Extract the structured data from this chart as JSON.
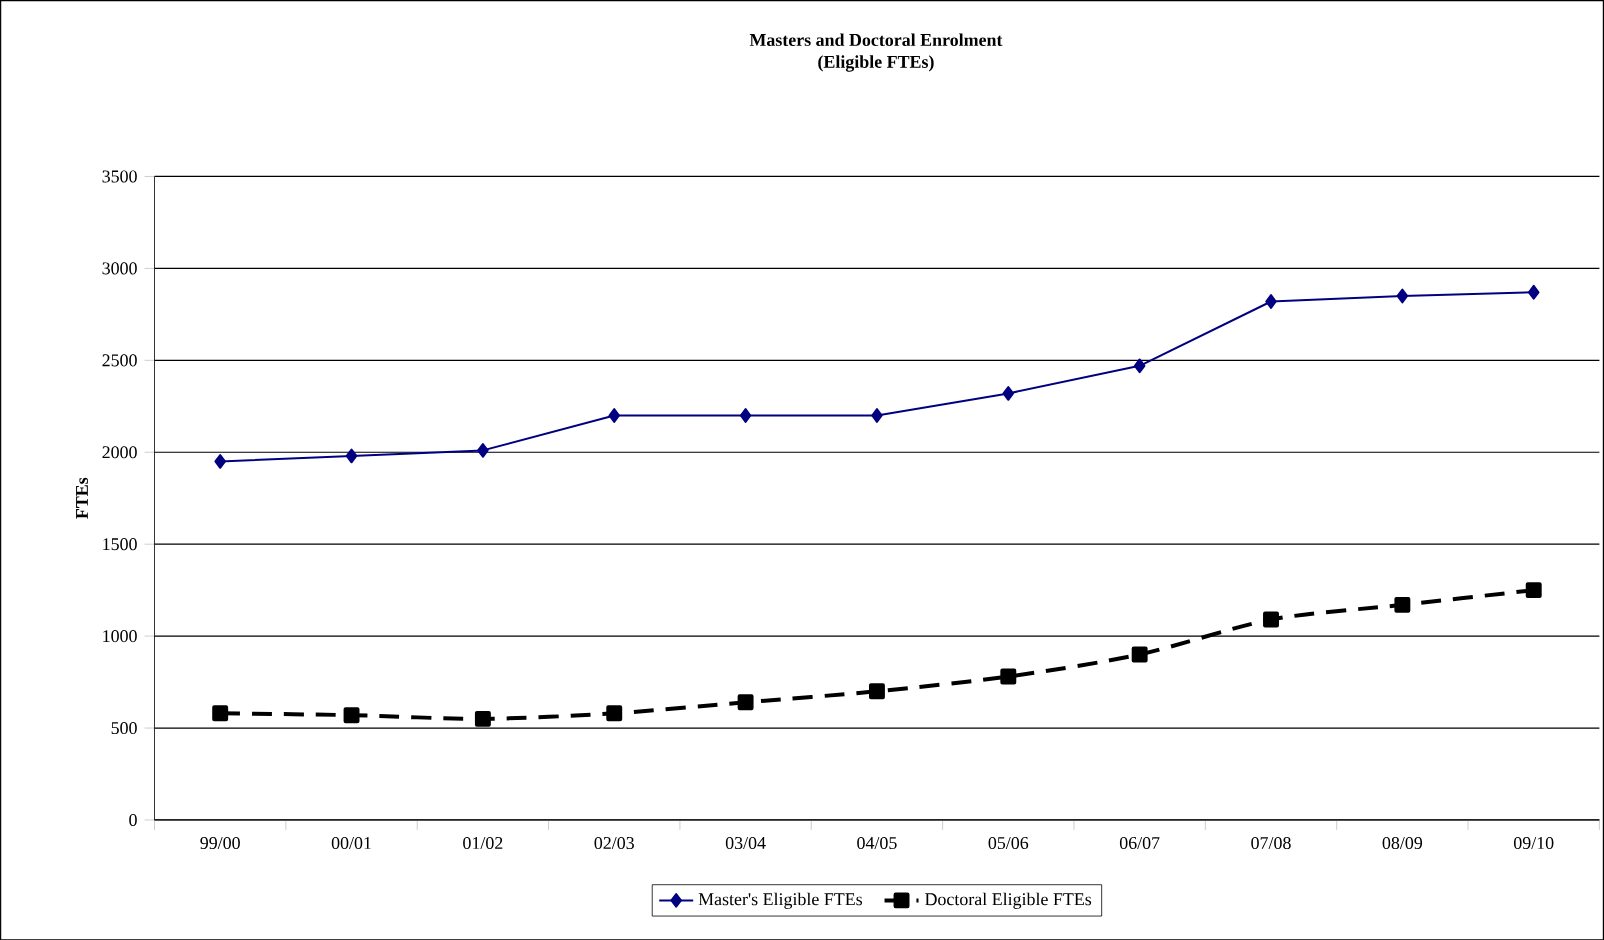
{
  "chart_data": {
    "type": "line",
    "title": "Masters and Doctoral Enrolment",
    "subtitle": "(Eligible FTEs)",
    "ylabel": "FTEs",
    "categories": [
      "99/00",
      "00/01",
      "01/02",
      "02/03",
      "03/04",
      "04/05",
      "05/06",
      "06/07",
      "07/08",
      "08/09",
      "09/10"
    ],
    "series": [
      {
        "name": "Master's Eligible FTEs",
        "color": "#000080",
        "marker": "diamond",
        "line_style": "solid",
        "values": [
          1950,
          1980,
          2010,
          2200,
          2200,
          2200,
          2320,
          2470,
          2820,
          2850,
          2870
        ]
      },
      {
        "name": "Doctoral Eligible FTEs",
        "color": "#000000",
        "marker": "square",
        "line_style": "dashed",
        "values": [
          580,
          570,
          550,
          580,
          640,
          700,
          780,
          900,
          1090,
          1170,
          1250
        ]
      }
    ],
    "ylim": [
      0,
      3500
    ],
    "yticks": [
      0,
      500,
      1000,
      1500,
      2000,
      2500,
      3000,
      3500
    ],
    "grid": "y",
    "legend": "bottom"
  }
}
